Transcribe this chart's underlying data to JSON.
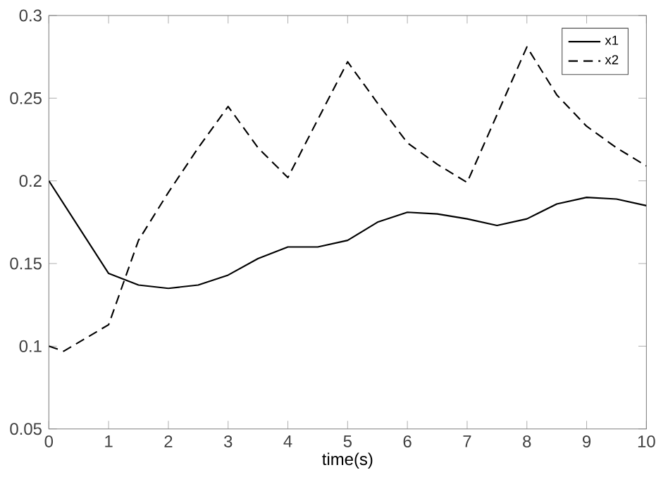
{
  "chart_data": {
    "type": "line",
    "xlabel": "time(s)",
    "xlim": [
      0,
      10
    ],
    "ylim": [
      0.05,
      0.3
    ],
    "xticks": [
      0,
      1,
      2,
      3,
      4,
      5,
      6,
      7,
      8,
      9,
      10
    ],
    "yticks": [
      0.05,
      0.1,
      0.15,
      0.2,
      0.25,
      0.3
    ],
    "legend": "top right",
    "grid": false,
    "marker": "none",
    "series": [
      {
        "name": "x1",
        "color": "#000000",
        "line_style": "solid",
        "x": [
          0,
          0.5,
          1,
          1.5,
          2,
          2.5,
          3,
          3.5,
          4,
          4.5,
          5,
          5.5,
          6,
          6.5,
          7,
          7.5,
          8,
          8.5,
          9,
          9.5,
          10
        ],
        "values": [
          0.2,
          0.172,
          0.144,
          0.137,
          0.135,
          0.137,
          0.143,
          0.153,
          0.16,
          0.16,
          0.164,
          0.175,
          0.181,
          0.18,
          0.177,
          0.173,
          0.177,
          0.186,
          0.19,
          0.189,
          0.185
        ]
      },
      {
        "name": "x2",
        "color": "#000000",
        "line_style": "dashed",
        "x": [
          0,
          0.25,
          1,
          1.5,
          2,
          2.5,
          3,
          3.5,
          4,
          4.5,
          5,
          5.5,
          6,
          6.5,
          7,
          8,
          8.5,
          9,
          9.5,
          10
        ],
        "values": [
          0.1,
          0.097,
          0.113,
          0.164,
          0.193,
          0.22,
          0.245,
          0.22,
          0.202,
          0.237,
          0.272,
          0.247,
          0.223,
          0.21,
          0.199,
          0.281,
          0.252,
          0.233,
          0.22,
          0.209
        ]
      }
    ]
  }
}
